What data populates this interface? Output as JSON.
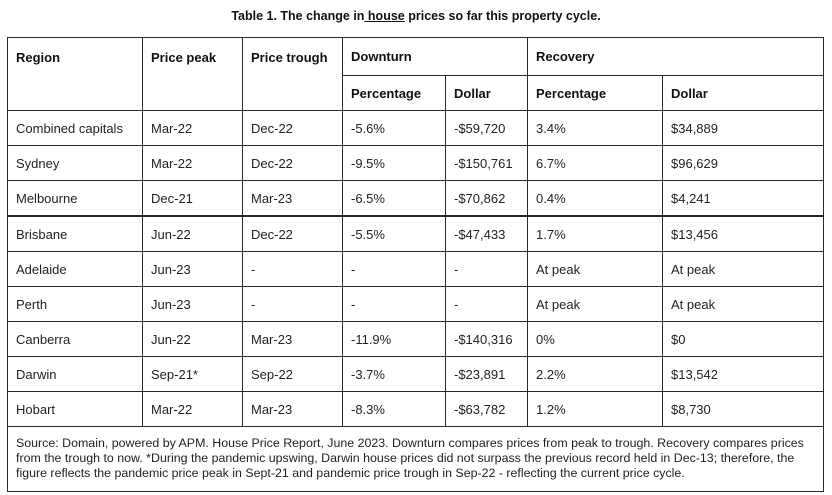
{
  "title": {
    "prefix": "Table 1. The change in",
    "underlined": " house",
    "suffix": " prices so far this property cycle."
  },
  "headers": {
    "region": "Region",
    "price_peak": "Price peak",
    "price_trough": "Price trough",
    "downturn": "Downturn",
    "recovery": "Recovery",
    "downturn_percentage": "Percentage",
    "downturn_dollar": "Dollar",
    "recovery_percentage": "Percentage",
    "recovery_dollar": "Dollar"
  },
  "rows": [
    {
      "region": "Combined capitals",
      "peak": "Mar-22",
      "trough": "Dec-22",
      "down_pct": "-5.6%",
      "down_dollar": "-$59,720",
      "rec_pct": "3.4%",
      "rec_dollar": "$34,889"
    },
    {
      "region": "Sydney",
      "peak": "Mar-22",
      "trough": "Dec-22",
      "down_pct": "-9.5%",
      "down_dollar": "-$150,761",
      "rec_pct": "6.7%",
      "rec_dollar": "$96,629"
    },
    {
      "region": "Melbourne",
      "peak": "Dec-21",
      "trough": "Mar-23",
      "down_pct": "-6.5%",
      "down_dollar": "-$70,862",
      "rec_pct": "0.4%",
      "rec_dollar": "$4,241"
    },
    {
      "region": "Brisbane",
      "peak": "Jun-22",
      "trough": "Dec-22",
      "down_pct": "-5.5%",
      "down_dollar": "-$47,433",
      "rec_pct": "1.7%",
      "rec_dollar": "$13,456"
    },
    {
      "region": "Adelaide",
      "peak": "Jun-23",
      "trough": "-",
      "down_pct": "-",
      "down_dollar": "-",
      "rec_pct": "At peak",
      "rec_dollar": "At peak"
    },
    {
      "region": "Perth",
      "peak": "Jun-23",
      "trough": "-",
      "down_pct": "-",
      "down_dollar": "-",
      "rec_pct": "At peak",
      "rec_dollar": "At peak"
    },
    {
      "region": "Canberra",
      "peak": "Jun-22",
      "trough": "Mar-23",
      "down_pct": "-11.9%",
      "down_dollar": "-$140,316",
      "rec_pct": "0%",
      "rec_dollar": "$0"
    },
    {
      "region": "Darwin",
      "peak": "Sep-21*",
      "trough": "Sep-22",
      "down_pct": "-3.7%",
      "down_dollar": "-$23,891",
      "rec_pct": "2.2%",
      "rec_dollar": "$13,542"
    },
    {
      "region": "Hobart",
      "peak": "Mar-22",
      "trough": "Mar-23",
      "down_pct": "-8.3%",
      "down_dollar": "-$63,782",
      "rec_pct": "1.2%",
      "rec_dollar": "$8,730"
    }
  ],
  "source": "Source: Domain, powered by APM. House Price Report, June 2023. Downturn compares prices from peak to trough. Recovery compares prices from the trough to now. *During the pandemic upswing, Darwin house prices did not surpass the previous record held in Dec-13; therefore, the figure reflects the pandemic price peak in Sept-21 and pandemic price trough in Sep-22 - reflecting the current price cycle."
}
